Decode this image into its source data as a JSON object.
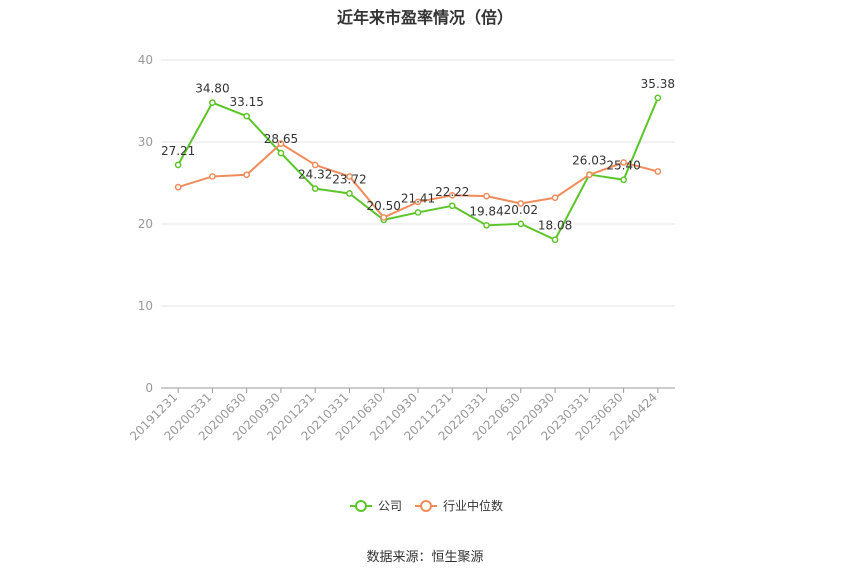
{
  "title": "近年来市盈率情况（倍）",
  "source_label": "数据来源：恒生聚源",
  "colors": {
    "company": "#5cc52a",
    "industry": "#ef8c5c",
    "grid": "#e6e6e6",
    "axis": "#999999"
  },
  "chart_data": {
    "type": "line",
    "title": "近年来市盈率情况（倍）",
    "xlabel": "",
    "ylabel": "",
    "ylim": [
      0,
      40
    ],
    "yticks": [
      0,
      10,
      20,
      30,
      40
    ],
    "grid": true,
    "legend_position": "bottom-center",
    "categories": [
      "20191231",
      "20200331",
      "20200630",
      "20200930",
      "20201231",
      "20210331",
      "20210630",
      "20210930",
      "20211231",
      "20220331",
      "20220630",
      "20220930",
      "20230331",
      "20230630",
      "20240424"
    ],
    "series": [
      {
        "name": "公司",
        "values": [
          27.21,
          34.8,
          33.15,
          28.65,
          24.32,
          23.72,
          20.5,
          21.41,
          22.22,
          19.84,
          20.02,
          18.08,
          26.03,
          25.4,
          35.38
        ],
        "labels": [
          "27.21",
          "34.80",
          "33.15",
          "28.65",
          "24.32",
          "23.72",
          "20.50",
          "21.41",
          "22.22",
          "19.84",
          "20.02",
          "18.08",
          "26.03",
          "25.40",
          "35.38"
        ]
      },
      {
        "name": "行业中位数",
        "values": [
          24.5,
          25.8,
          26.0,
          29.8,
          27.2,
          25.8,
          20.8,
          22.7,
          23.5,
          23.4,
          22.5,
          23.2,
          26.0,
          27.5,
          26.4
        ]
      }
    ]
  }
}
